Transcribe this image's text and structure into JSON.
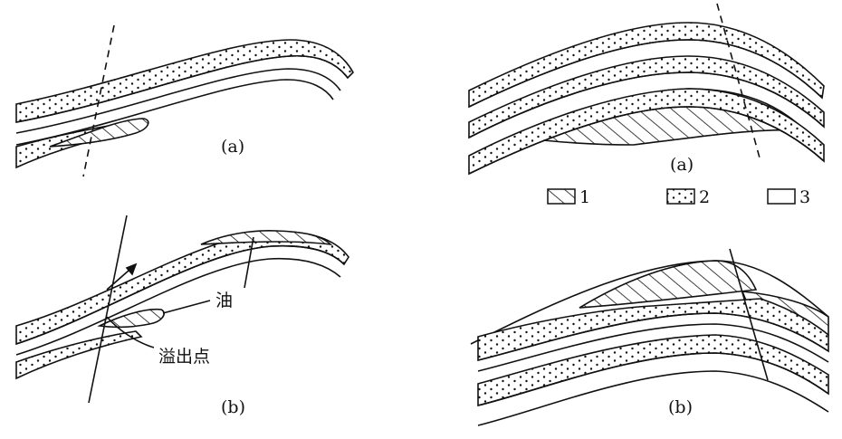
{
  "labels": {
    "left_top": "(a)",
    "left_bottom": "(b)",
    "right_top": "(a)",
    "right_bottom": "(b)",
    "oil": "油",
    "spill_point": "溢出点"
  },
  "legend": {
    "items": [
      {
        "label": "1",
        "pattern": "hatch"
      },
      {
        "label": "2",
        "pattern": "dots"
      },
      {
        "label": "3",
        "pattern": "blank"
      }
    ]
  },
  "colors": {
    "ink": "#111111",
    "background": "#ffffff"
  }
}
